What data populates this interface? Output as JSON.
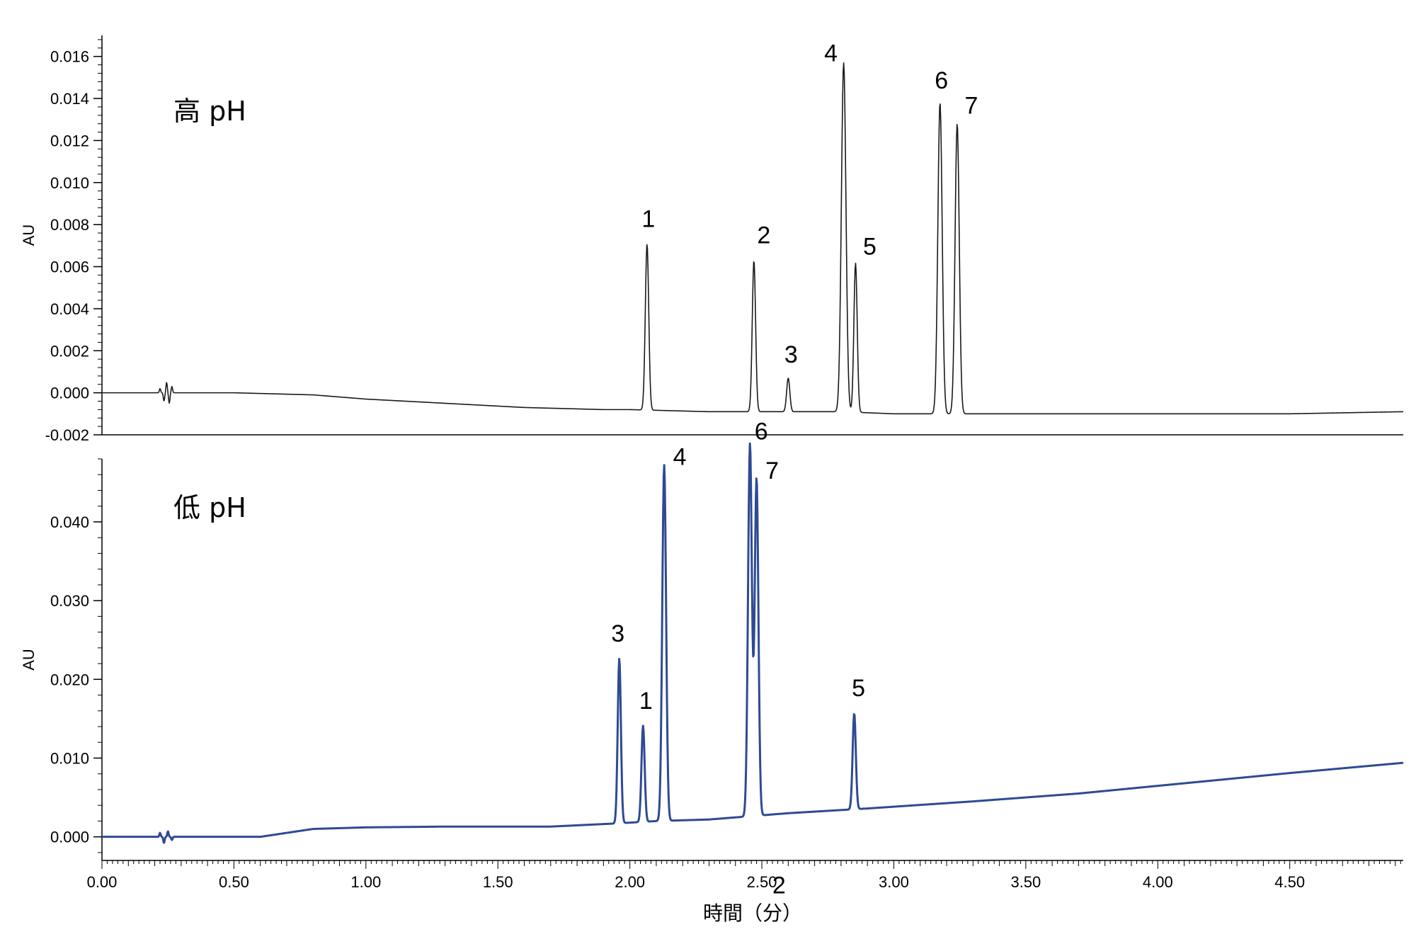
{
  "chart_data": {
    "type": "line",
    "xlabel": "時間（分）",
    "xlim": [
      0.0,
      4.93
    ],
    "xticks": [
      "0.00",
      "0.50",
      "1.00",
      "1.50",
      "2.00",
      "2.50",
      "3.00",
      "3.50",
      "4.00",
      "4.50"
    ],
    "panels": [
      {
        "label": "高 pH",
        "ylabel": "AU",
        "ylim": [
          -0.002,
          0.017
        ],
        "yticks": [
          "-0.002",
          "0.000",
          "0.002",
          "0.004",
          "0.006",
          "0.008",
          "0.010",
          "0.012",
          "0.014",
          "0.016"
        ],
        "color": "#1a1a1a",
        "baseline": [
          [
            0.0,
            0.0
          ],
          [
            0.5,
            0.0
          ],
          [
            0.8,
            -0.0001
          ],
          [
            1.0,
            -0.0003
          ],
          [
            1.3,
            -0.0005
          ],
          [
            1.6,
            -0.0007
          ],
          [
            1.9,
            -0.0008
          ],
          [
            2.0,
            -0.0008
          ],
          [
            2.3,
            -0.0009
          ],
          [
            2.8,
            -0.0009
          ],
          [
            3.0,
            -0.001
          ],
          [
            3.5,
            -0.001
          ],
          [
            4.0,
            -0.001
          ],
          [
            4.5,
            -0.001
          ],
          [
            4.93,
            -0.0009
          ]
        ],
        "noise": [
          [
            0.22,
            0.0002
          ],
          [
            0.235,
            -0.0004
          ],
          [
            0.245,
            0.0005
          ],
          [
            0.255,
            -0.0005
          ],
          [
            0.265,
            0.0003
          ]
        ],
        "peaks": [
          {
            "label": "1",
            "rt": 2.065,
            "height": 0.0079
          },
          {
            "label": "2",
            "rt": 2.47,
            "height": 0.0072
          },
          {
            "label": "3",
            "rt": 2.6,
            "height": 0.0016
          },
          {
            "label": "4",
            "rt": 2.81,
            "height": 0.0166
          },
          {
            "label": "5",
            "rt": 2.855,
            "height": 0.0071
          },
          {
            "label": "6",
            "rt": 3.175,
            "height": 0.0148
          },
          {
            "label": "7",
            "rt": 3.24,
            "height": 0.0138
          }
        ]
      },
      {
        "label": "低 pH",
        "ylabel": "AU",
        "ylim": [
          -0.003,
          0.048
        ],
        "yticks": [
          "0.000",
          "0.010",
          "0.020",
          "0.030",
          "0.040"
        ],
        "color": "#2e4a94",
        "baseline": [
          [
            0.0,
            0.0
          ],
          [
            0.6,
            0.0
          ],
          [
            0.8,
            0.001
          ],
          [
            1.0,
            0.0012
          ],
          [
            1.3,
            0.0013
          ],
          [
            1.7,
            0.0013
          ],
          [
            1.95,
            0.0017
          ],
          [
            2.1,
            0.002
          ],
          [
            2.3,
            0.0022
          ],
          [
            2.6,
            0.003
          ],
          [
            2.9,
            0.0036
          ],
          [
            3.3,
            0.0045
          ],
          [
            3.7,
            0.0055
          ],
          [
            4.1,
            0.0068
          ],
          [
            4.5,
            0.0081
          ],
          [
            4.93,
            0.0094
          ]
        ],
        "noise": [
          [
            0.22,
            0.0005
          ],
          [
            0.235,
            -0.0008
          ],
          [
            0.25,
            0.0007
          ],
          [
            0.265,
            -0.0004
          ]
        ],
        "peaks": [
          {
            "label": "3",
            "rt": 1.96,
            "height": 0.0209
          },
          {
            "label": "1",
            "rt": 2.05,
            "height": 0.0122
          },
          {
            "label": "4",
            "rt": 2.13,
            "height": 0.0452
          },
          {
            "label": "6",
            "rt": 2.455,
            "height": 0.0473
          },
          {
            "label": "7",
            "rt": 2.48,
            "height": 0.0428
          },
          {
            "label": "2",
            "rt": 2.49,
            "height": 0.0
          },
          {
            "label": "5",
            "rt": 2.85,
            "height": 0.0122
          }
        ]
      }
    ]
  }
}
